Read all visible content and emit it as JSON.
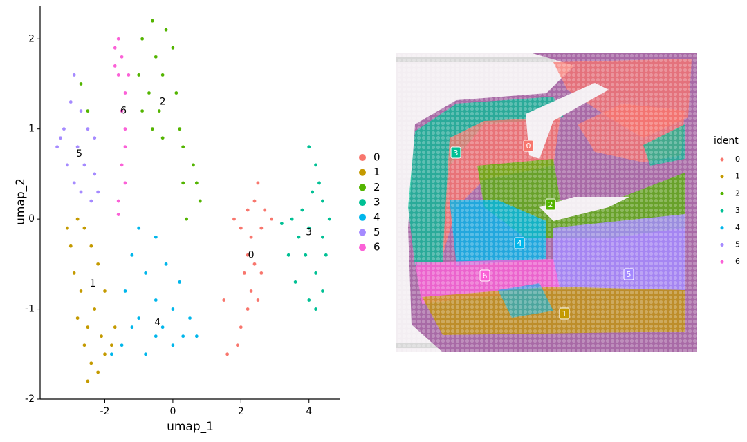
{
  "chart_data": [
    {
      "type": "scatter",
      "xlabel": "umap_1",
      "ylabel": "umap_2",
      "xlim": [
        -3.9,
        4.92
      ],
      "ylim": [
        -2.0,
        2.37
      ],
      "xticks": [
        -2,
        0,
        2,
        4
      ],
      "yticks": [
        -2,
        -1,
        0,
        1,
        2
      ],
      "series": [
        {
          "name": "0",
          "color": "#F8766D",
          "x": [
            2.5,
            2.4,
            2.2,
            1.8,
            2.0,
            2.3,
            2.6,
            2.2,
            2.4,
            2.1,
            2.3,
            2.5,
            2.2,
            2.0,
            1.9,
            1.6,
            2.7,
            2.9,
            1.5,
            2.6
          ],
          "values": [
            0.4,
            0.2,
            0.1,
            0.0,
            -0.1,
            -0.2,
            -0.1,
            -0.4,
            -0.5,
            -0.6,
            -0.8,
            -0.9,
            -1.0,
            -1.2,
            -1.4,
            -1.5,
            0.1,
            0.0,
            -0.9,
            -0.6
          ]
        },
        {
          "name": "1",
          "color": "#C49A00",
          "x": [
            -2.8,
            -2.6,
            -3.0,
            -2.4,
            -2.9,
            -2.2,
            -2.7,
            -2.3,
            -2.8,
            -2.5,
            -2.1,
            -2.6,
            -2.0,
            -2.4,
            -2.5,
            -2.2,
            -1.8,
            -3.1,
            -2.0,
            -1.7
          ],
          "values": [
            0.0,
            -0.1,
            -0.3,
            -0.3,
            -0.6,
            -0.5,
            -0.8,
            -1.0,
            -1.1,
            -1.2,
            -1.3,
            -1.4,
            -1.5,
            -1.6,
            -1.8,
            -1.7,
            -1.4,
            -0.1,
            -0.8,
            -1.2
          ]
        },
        {
          "name": "2",
          "color": "#53B400",
          "x": [
            -0.6,
            -0.2,
            -0.9,
            0.0,
            -0.5,
            -1.0,
            -0.3,
            -0.7,
            0.1,
            -0.4,
            -0.9,
            0.2,
            -0.3,
            0.3,
            0.6,
            0.3,
            0.7,
            -0.6,
            0.4,
            0.8,
            -2.7,
            -2.5
          ],
          "values": [
            2.2,
            2.1,
            2.0,
            1.9,
            1.8,
            1.6,
            1.6,
            1.4,
            1.4,
            1.2,
            1.2,
            1.0,
            0.9,
            0.8,
            0.6,
            0.4,
            0.4,
            1.0,
            0.0,
            0.2,
            1.5,
            1.2
          ]
        },
        {
          "name": "3",
          "color": "#00C094",
          "x": [
            4.0,
            4.2,
            4.3,
            4.4,
            3.8,
            3.5,
            3.2,
            4.0,
            4.4,
            4.5,
            3.9,
            4.2,
            4.4,
            3.6,
            4.0,
            4.2,
            3.4,
            4.6,
            4.1,
            3.7
          ],
          "values": [
            0.8,
            0.6,
            0.4,
            0.2,
            0.1,
            0.0,
            -0.05,
            -0.1,
            -0.2,
            -0.4,
            -0.4,
            -0.6,
            -0.8,
            -0.7,
            -0.9,
            -1.0,
            -0.4,
            0.0,
            0.3,
            -0.2
          ]
        },
        {
          "name": "4",
          "color": "#00B6EB",
          "x": [
            -1.0,
            -0.5,
            -1.2,
            -0.2,
            -0.8,
            0.2,
            -1.4,
            -0.5,
            0.0,
            -1.0,
            0.5,
            -0.3,
            0.3,
            -1.5,
            -0.8,
            0.0,
            0.7,
            -1.8,
            -0.5,
            -1.2
          ],
          "values": [
            -0.1,
            -0.2,
            -0.4,
            -0.5,
            -0.6,
            -0.7,
            -0.8,
            -0.9,
            -1.0,
            -1.1,
            -1.1,
            -1.2,
            -1.3,
            -1.4,
            -1.5,
            -1.4,
            -1.3,
            -1.5,
            -1.3,
            -1.2
          ]
        },
        {
          "name": "5",
          "color": "#A58AFF",
          "x": [
            -2.9,
            -3.0,
            -2.7,
            -3.2,
            -2.5,
            -3.4,
            -2.8,
            -2.3,
            -3.1,
            -2.6,
            -2.9,
            -2.3,
            -2.7,
            -2.4,
            -3.3,
            -2.2
          ],
          "values": [
            1.6,
            1.3,
            1.2,
            1.0,
            1.0,
            0.8,
            0.8,
            0.9,
            0.6,
            0.6,
            0.4,
            0.5,
            0.3,
            0.2,
            0.9,
            0.3
          ]
        },
        {
          "name": "6",
          "color": "#FB61D7",
          "x": [
            -1.6,
            -1.7,
            -1.5,
            -1.6,
            -1.4,
            -1.5,
            -1.4,
            -1.4,
            -1.5,
            -1.4,
            -1.6,
            -1.6,
            -1.3,
            -1.7
          ],
          "values": [
            2.0,
            1.9,
            1.8,
            1.6,
            1.4,
            1.2,
            1.0,
            0.8,
            0.6,
            0.4,
            0.2,
            0.05,
            1.6,
            1.7
          ]
        }
      ],
      "annotations": [
        {
          "text": "0",
          "x": 2.3,
          "y": -0.4
        },
        {
          "text": "1",
          "x": -2.35,
          "y": -0.72
        },
        {
          "text": "2",
          "x": -0.3,
          "y": 1.3
        },
        {
          "text": "3",
          "x": 4.0,
          "y": -0.15
        },
        {
          "text": "4",
          "x": -0.45,
          "y": -1.15
        },
        {
          "text": "5",
          "x": -2.75,
          "y": 0.72
        },
        {
          "text": "6",
          "x": -1.45,
          "y": 1.2
        }
      ]
    },
    {
      "type": "spatial",
      "legend_title": "ident",
      "series": [
        {
          "name": "0",
          "color": "#F8766D"
        },
        {
          "name": "1",
          "color": "#C49A00"
        },
        {
          "name": "2",
          "color": "#53B400"
        },
        {
          "name": "3",
          "color": "#00C094"
        },
        {
          "name": "4",
          "color": "#00B6EB"
        },
        {
          "name": "5",
          "color": "#A58AFF"
        },
        {
          "name": "6",
          "color": "#FB61D7"
        }
      ],
      "spot_labels": [
        "3",
        "0",
        "2",
        "4",
        "6",
        "5",
        "1"
      ]
    }
  ]
}
